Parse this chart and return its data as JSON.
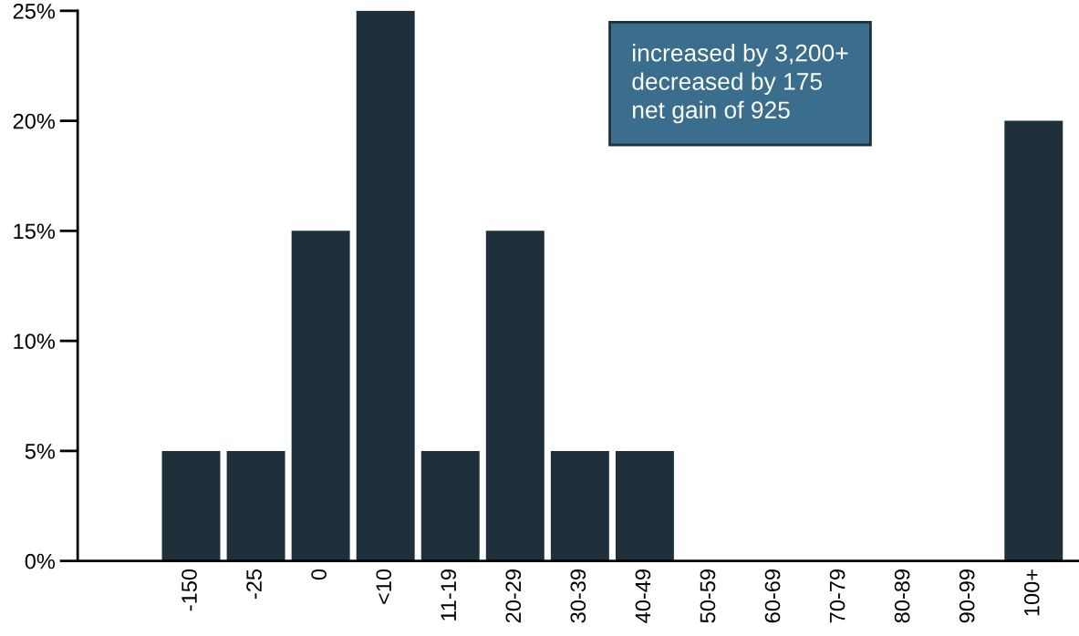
{
  "chart_data": {
    "type": "bar",
    "categories": [
      null,
      "-150",
      "-25",
      "0",
      "<10",
      "11-19",
      "20-29",
      "30-39",
      "40-49",
      "50-59",
      "60-69",
      "70-79",
      "80-89",
      "90-99",
      "100+"
    ],
    "values": [
      0,
      5,
      5,
      15,
      25,
      5,
      15,
      5,
      5,
      0,
      0,
      0,
      0,
      0,
      20
    ],
    "color": "#1e303c",
    "ylim": [
      0,
      25
    ],
    "yticks": [
      {
        "value": 0,
        "label": "0%"
      },
      {
        "value": 5,
        "label": "5%"
      },
      {
        "value": 10,
        "label": "10%"
      },
      {
        "value": 15,
        "label": "15%"
      },
      {
        "value": 20,
        "label": "20%"
      },
      {
        "value": 25,
        "label": "25%"
      }
    ],
    "grid": false,
    "annotations": [
      "increased by 3,200+",
      "decreased by 175",
      "net gain of 925"
    ]
  }
}
